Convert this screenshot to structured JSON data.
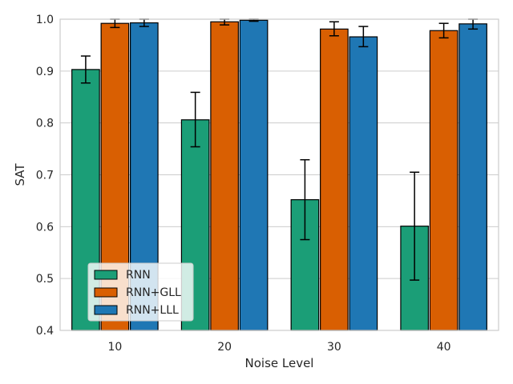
{
  "chart_data": {
    "type": "bar",
    "title": "",
    "xlabel": "Noise Level",
    "ylabel": "SAT",
    "ylim": [
      0.4,
      1.0
    ],
    "yticks": [
      0.4,
      0.5,
      0.6,
      0.7,
      0.8,
      0.9,
      1.0
    ],
    "grid": "horizontal",
    "legend_position": "lower-left",
    "categories": [
      "10",
      "20",
      "30",
      "40"
    ],
    "series": [
      {
        "name": "RNN",
        "color": "#1b9e77",
        "values": [
          0.903,
          0.806,
          0.652,
          0.601
        ],
        "error_low": [
          0.877,
          0.754,
          0.575,
          0.497
        ],
        "error_high": [
          0.929,
          0.859,
          0.729,
          0.705
        ]
      },
      {
        "name": "RNN+GLL",
        "color": "#d95f02",
        "values": [
          0.992,
          0.995,
          0.981,
          0.978
        ],
        "error_low": [
          0.984,
          0.989,
          0.968,
          0.964
        ],
        "error_high": [
          1.0,
          1.0,
          0.995,
          0.992
        ]
      },
      {
        "name": "RNN+LLL",
        "color": "#1f77b4",
        "values": [
          0.993,
          0.998,
          0.966,
          0.991
        ],
        "error_low": [
          0.986,
          0.996,
          0.947,
          0.981
        ],
        "error_high": [
          1.0,
          1.0,
          0.986,
          1.0
        ]
      }
    ]
  }
}
